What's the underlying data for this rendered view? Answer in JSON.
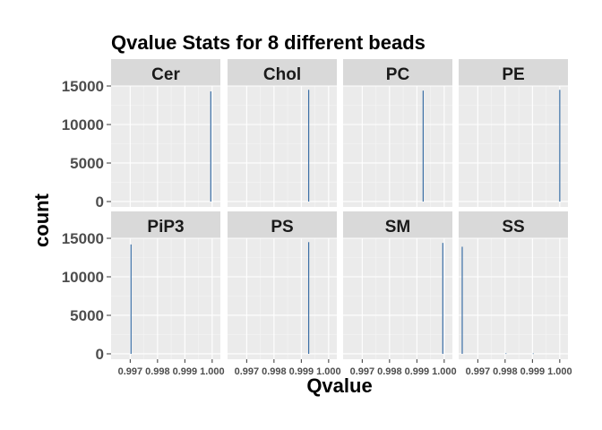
{
  "chart_data": {
    "type": "histogram",
    "title": "Qvalue Stats for 8 different beads",
    "xlabel": "Qvalue",
    "ylabel": "count",
    "xlim": [
      0.9963,
      1.0003
    ],
    "ylim": [
      -700,
      15000
    ],
    "x_ticks": [
      0.997,
      0.998,
      0.999,
      1.0
    ],
    "x_tick_labels": [
      "0.997",
      "0.998",
      "0.999",
      "1.000"
    ],
    "y_ticks": [
      0,
      5000,
      10000,
      15000
    ],
    "y_tick_labels": [
      "0",
      "5000",
      "10000",
      "15000"
    ],
    "grid": true,
    "bar_color": "#3b6fa6",
    "panels": [
      {
        "name": "Cer",
        "bars": [
          {
            "x": 0.99995,
            "count": 14300
          }
        ]
      },
      {
        "name": "Chol",
        "bars": [
          {
            "x": 0.99927,
            "count": 14500
          }
        ]
      },
      {
        "name": "PC",
        "bars": [
          {
            "x": 0.99923,
            "count": 14400
          }
        ]
      },
      {
        "name": "PE",
        "bars": [
          {
            "x": 1.0,
            "count": 14500
          }
        ]
      },
      {
        "name": "PiP3",
        "bars": [
          {
            "x": 0.99703,
            "count": 14200
          }
        ]
      },
      {
        "name": "PS",
        "bars": [
          {
            "x": 0.99927,
            "count": 14500
          }
        ]
      },
      {
        "name": "SM",
        "bars": [
          {
            "x": 0.99995,
            "count": 14400
          }
        ]
      },
      {
        "name": "SS",
        "bars": [
          {
            "x": 0.99643,
            "count": 13900
          },
          {
            "x": 0.99803,
            "count": 60
          },
          {
            "x": 0.99903,
            "count": 50
          }
        ]
      }
    ]
  }
}
